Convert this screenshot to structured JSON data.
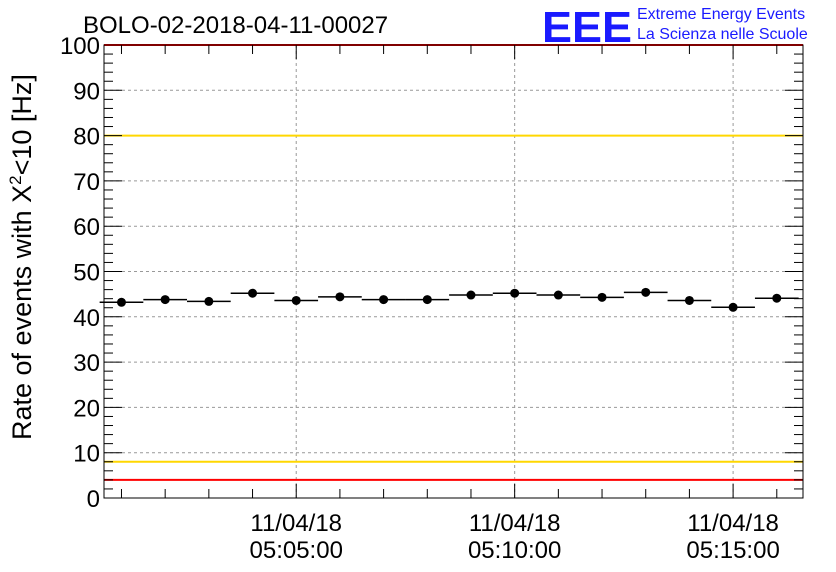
{
  "chart_data": {
    "type": "scatter",
    "title": "BOLO-02-2018-04-11-00027",
    "ylabel_main": "Rate of events with X",
    "ylabel_sup": "2",
    "ylabel_tail": "<10 [Hz]",
    "ylim": [
      0,
      100
    ],
    "yticks": [
      0,
      10,
      20,
      30,
      40,
      50,
      60,
      70,
      80,
      90,
      100
    ],
    "xlim_min": [
      0.6,
      16.6
    ],
    "xticks": [
      {
        "min": 5,
        "date": "11/04/18",
        "time": "05:05:00"
      },
      {
        "min": 10,
        "date": "11/04/18",
        "time": "05:10:00"
      },
      {
        "min": 15,
        "date": "11/04/18",
        "time": "05:15:00"
      }
    ],
    "grid": true,
    "bin_width_min": 1,
    "x_min": [
      1,
      2,
      3,
      4,
      5,
      6,
      7,
      8,
      9,
      10,
      11,
      12,
      13,
      14,
      15,
      16
    ],
    "values": [
      43.2,
      43.8,
      43.4,
      45.2,
      43.6,
      44.4,
      43.8,
      43.8,
      44.8,
      45.2,
      44.8,
      44.3,
      45.4,
      43.6,
      42.1,
      44.1
    ],
    "reference_lines": [
      {
        "y": 100,
        "color": "#ff0000"
      },
      {
        "y": 80,
        "color": "#ffd700"
      },
      {
        "y": 8,
        "color": "#ffd700"
      },
      {
        "y": 4,
        "color": "#ff0000"
      }
    ],
    "marker_color": "#000000"
  },
  "logo": {
    "mark": "EEE",
    "line1": "Extreme Energy Events",
    "line2": "La Scienza nelle Scuole",
    "color": "#1a1aff"
  }
}
